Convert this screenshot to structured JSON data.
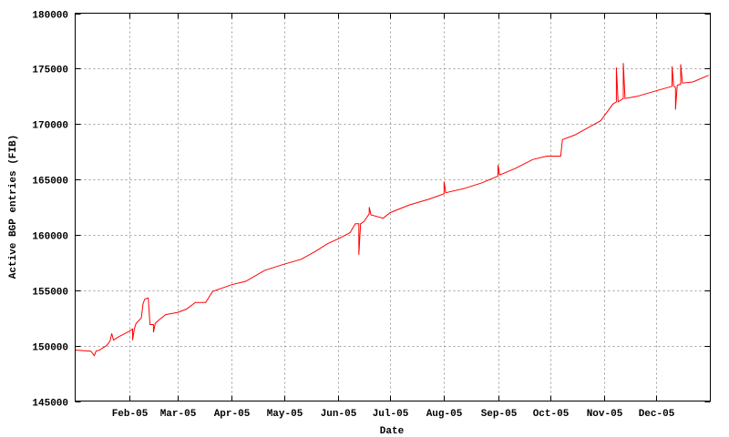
{
  "chart_data": {
    "type": "line",
    "title": "",
    "xlabel": "Date",
    "ylabel": "Active BGP entries (FIB)",
    "xlim": [
      "2005-01-01",
      "2005-12-31"
    ],
    "ylim": [
      145000,
      180000
    ],
    "yticks": [
      145000,
      150000,
      155000,
      160000,
      165000,
      170000,
      175000,
      180000
    ],
    "xticks": [
      {
        "date": "2005-02-01",
        "label": "Feb-05"
      },
      {
        "date": "2005-03-01",
        "label": "Mar-05"
      },
      {
        "date": "2005-04-01",
        "label": "Apr-05"
      },
      {
        "date": "2005-05-01",
        "label": "May-05"
      },
      {
        "date": "2005-06-01",
        "label": "Jun-05"
      },
      {
        "date": "2005-07-01",
        "label": "Jul-05"
      },
      {
        "date": "2005-08-01",
        "label": "Aug-05"
      },
      {
        "date": "2005-09-01",
        "label": "Sep-05"
      },
      {
        "date": "2005-10-01",
        "label": "Oct-05"
      },
      {
        "date": "2005-11-01",
        "label": "Nov-05"
      },
      {
        "date": "2005-12-01",
        "label": "Dec-05"
      }
    ],
    "grid": true,
    "line_color": "#ff0000",
    "series": [
      {
        "points": [
          [
            "2005-01-01",
            149600
          ],
          [
            "2005-01-10",
            149500
          ],
          [
            "2005-01-12",
            149100
          ],
          [
            "2005-01-13",
            149500
          ],
          [
            "2005-01-15",
            149600
          ],
          [
            "2005-01-19",
            150000
          ],
          [
            "2005-01-21",
            150400
          ],
          [
            "2005-01-22",
            151100
          ],
          [
            "2005-01-23",
            150500
          ],
          [
            "2005-01-26",
            150800
          ],
          [
            "2005-01-31",
            151200
          ],
          [
            "2005-02-03",
            151500
          ],
          [
            "2005-02-03",
            150500
          ],
          [
            "2005-02-04",
            151500
          ],
          [
            "2005-02-05",
            152000
          ],
          [
            "2005-02-08",
            152500
          ],
          [
            "2005-02-09",
            153800
          ],
          [
            "2005-02-10",
            154200
          ],
          [
            "2005-02-12",
            154300
          ],
          [
            "2005-02-13",
            151900
          ],
          [
            "2005-02-15",
            151900
          ],
          [
            "2005-02-15",
            151200
          ],
          [
            "2005-02-16",
            152000
          ],
          [
            "2005-02-18",
            152300
          ],
          [
            "2005-02-22",
            152800
          ],
          [
            "2005-03-01",
            153000
          ],
          [
            "2005-03-06",
            153300
          ],
          [
            "2005-03-11",
            153900
          ],
          [
            "2005-03-17",
            153900
          ],
          [
            "2005-03-21",
            154900
          ],
          [
            "2005-04-01",
            155500
          ],
          [
            "2005-04-09",
            155800
          ],
          [
            "2005-04-20",
            156800
          ],
          [
            "2005-04-30",
            157300
          ],
          [
            "2005-05-11",
            157800
          ],
          [
            "2005-05-19",
            158500
          ],
          [
            "2005-05-26",
            159200
          ],
          [
            "2005-06-02",
            159700
          ],
          [
            "2005-06-08",
            160200
          ],
          [
            "2005-06-11",
            161000
          ],
          [
            "2005-06-13",
            161000
          ],
          [
            "2005-06-13",
            158200
          ],
          [
            "2005-06-14",
            161000
          ],
          [
            "2005-06-16",
            161200
          ],
          [
            "2005-06-19",
            161900
          ],
          [
            "2005-06-19",
            162500
          ],
          [
            "2005-06-20",
            161800
          ],
          [
            "2005-06-27",
            161500
          ],
          [
            "2005-07-01",
            162000
          ],
          [
            "2005-07-12",
            162700
          ],
          [
            "2005-07-23",
            163200
          ],
          [
            "2005-08-01",
            163700
          ],
          [
            "2005-08-01",
            164800
          ],
          [
            "2005-08-02",
            163800
          ],
          [
            "2005-08-13",
            164200
          ],
          [
            "2005-08-23",
            164700
          ],
          [
            "2005-09-01",
            165300
          ],
          [
            "2005-09-01",
            166300
          ],
          [
            "2005-09-02",
            165400
          ],
          [
            "2005-09-11",
            166000
          ],
          [
            "2005-09-21",
            166800
          ],
          [
            "2005-09-29",
            167100
          ],
          [
            "2005-10-07",
            167100
          ],
          [
            "2005-10-08",
            168600
          ],
          [
            "2005-10-15",
            169000
          ],
          [
            "2005-10-22",
            169600
          ],
          [
            "2005-10-30",
            170300
          ],
          [
            "2005-11-06",
            171800
          ],
          [
            "2005-11-08",
            172000
          ],
          [
            "2005-11-08",
            175100
          ],
          [
            "2005-11-09",
            172000
          ],
          [
            "2005-11-12",
            172300
          ],
          [
            "2005-11-12",
            175500
          ],
          [
            "2005-11-13",
            172300
          ],
          [
            "2005-11-20",
            172500
          ],
          [
            "2005-12-01",
            173000
          ],
          [
            "2005-12-10",
            173400
          ],
          [
            "2005-12-10",
            175200
          ],
          [
            "2005-12-11",
            173400
          ],
          [
            "2005-12-12",
            173300
          ],
          [
            "2005-12-12",
            171300
          ],
          [
            "2005-12-13",
            173500
          ],
          [
            "2005-12-15",
            173600
          ],
          [
            "2005-12-15",
            175400
          ],
          [
            "2005-12-16",
            173700
          ],
          [
            "2005-12-22",
            173800
          ],
          [
            "2005-12-31",
            174400
          ]
        ]
      }
    ]
  }
}
